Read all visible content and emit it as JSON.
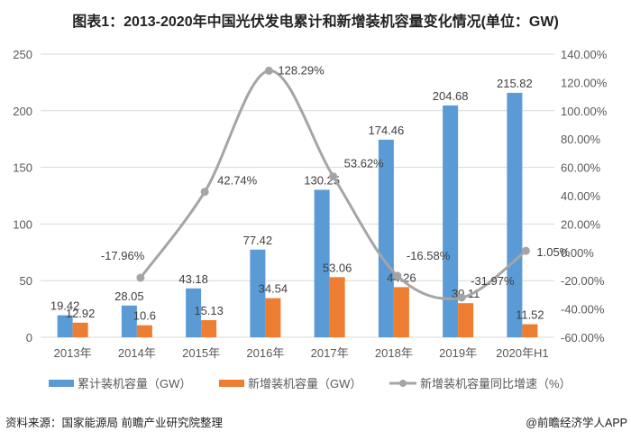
{
  "title": "图表1：2013-2020年中国光伏发电累计和新增装机容量变化情况(单位：GW)",
  "source": "资料来源：国家能源局 前瞻产业研究院整理",
  "brand": "@前瞻经济学人APP",
  "chart_data": {
    "type": "bar+line",
    "categories": [
      "2013年",
      "2014年",
      "2015年",
      "2016年",
      "2017年",
      "2018年",
      "2019年",
      "2020年H1"
    ],
    "series": [
      {
        "name": "累计装机容量（GW）",
        "type": "bar",
        "axis": "left",
        "color": "#5b9bd5",
        "values": [
          19.42,
          28.05,
          43.18,
          77.42,
          130.25,
          174.46,
          204.68,
          215.82
        ],
        "labels": [
          "19.42",
          "28.05",
          "43.18",
          "77.42",
          "130.25",
          "174.46",
          "204.68",
          "215.82"
        ]
      },
      {
        "name": "新增装机容量（GW）",
        "type": "bar",
        "axis": "left",
        "color": "#ed7d31",
        "values": [
          12.92,
          10.6,
          15.13,
          34.54,
          53.06,
          44.26,
          30.11,
          11.52
        ],
        "labels": [
          "12.92",
          "10.6",
          "15.13",
          "34.54",
          "53.06",
          "44.26",
          "30.11",
          "11.52"
        ]
      },
      {
        "name": "新增装机容量同比增速（%）",
        "type": "line",
        "axis": "right",
        "color": "#a5a5a5",
        "values": [
          null,
          -17.96,
          42.74,
          128.29,
          53.62,
          -16.58,
          -31.97,
          1.05
        ],
        "labels": [
          "",
          "-17.96%",
          "42.74%",
          "128.29%",
          "53.62%",
          "-16.58%",
          "-31.97%",
          "1.05%"
        ]
      }
    ],
    "y_left": {
      "range": [
        0,
        250
      ],
      "ticks": [
        "0",
        "50",
        "100",
        "150",
        "200",
        "250"
      ]
    },
    "y_right": {
      "range": [
        -60,
        140
      ],
      "ticks": [
        "-60.00%",
        "-40.00%",
        "-20.00%",
        "0.00%",
        "20.00%",
        "40.00%",
        "60.00%",
        "80.00%",
        "100.00%",
        "120.00%",
        "140.00%"
      ]
    },
    "grid": true,
    "legend_position": "bottom"
  }
}
